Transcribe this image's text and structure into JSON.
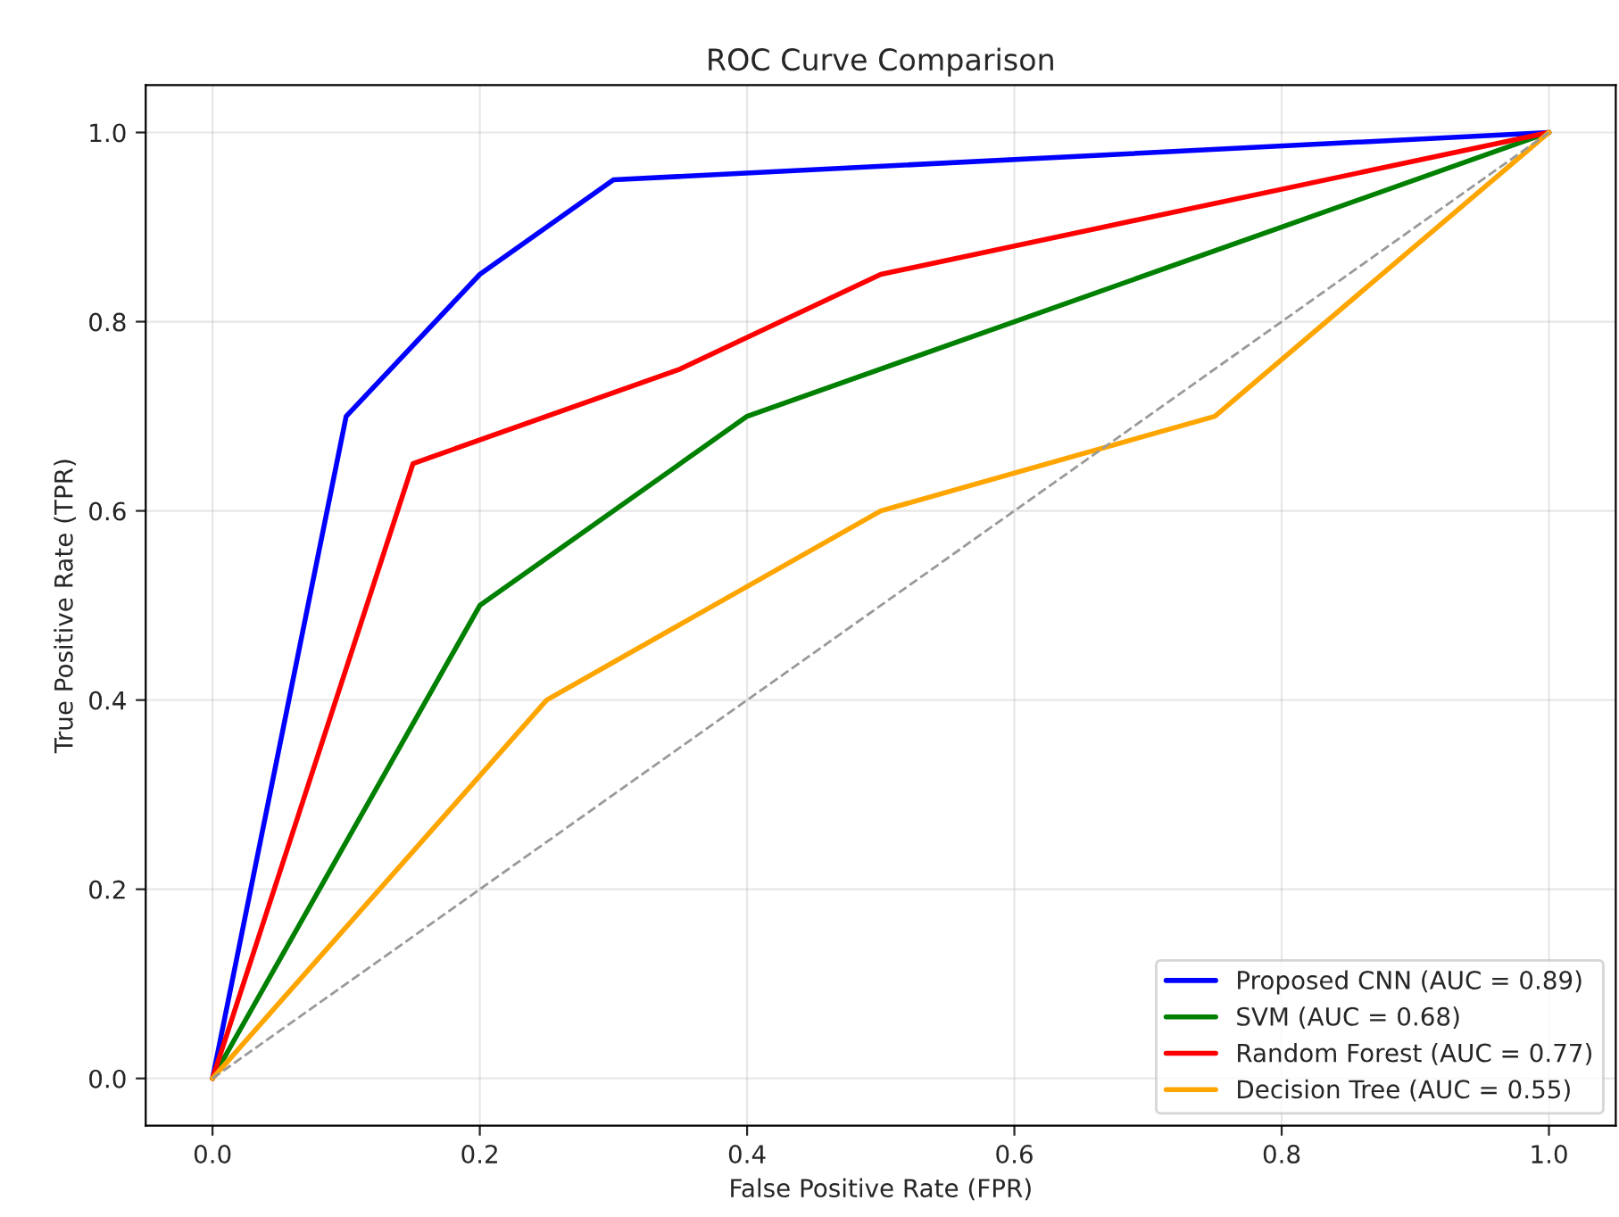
{
  "chart_data": {
    "type": "line",
    "title": "ROC Curve Comparison",
    "xlabel": "False Positive Rate (FPR)",
    "ylabel": "True Positive Rate (TPR)",
    "series": [
      {
        "name": "Proposed CNN (AUC = 0.89)",
        "color": "#0000ff",
        "x": [
          0,
          0.1,
          0.2,
          0.3,
          1.0
        ],
        "values": [
          0,
          0.7,
          0.85,
          0.95,
          1.0
        ]
      },
      {
        "name": "SVM (AUC = 0.68)",
        "color": "#008000",
        "x": [
          0,
          0.2,
          0.4,
          1.0
        ],
        "values": [
          0,
          0.5,
          0.7,
          1.0
        ]
      },
      {
        "name": "Random Forest (AUC = 0.77)",
        "color": "#ff0000",
        "x": [
          0,
          0.15,
          0.35,
          0.5,
          1.0
        ],
        "values": [
          0,
          0.65,
          0.75,
          0.85,
          1.0
        ]
      },
      {
        "name": "Decision Tree (AUC = 0.55)",
        "color": "#ffa500",
        "x": [
          0,
          0.25,
          0.5,
          0.75,
          1.0
        ],
        "values": [
          0,
          0.4,
          0.6,
          0.7,
          1.0
        ]
      },
      {
        "color": "#999999",
        "line_style": "dashed",
        "x": [
          0,
          1.0
        ],
        "values": [
          0,
          1.0
        ]
      }
    ],
    "xlim": [
      -0.05,
      1.05
    ],
    "ylim": [
      -0.05,
      1.05
    ],
    "xticks": [
      {
        "value": 0,
        "label": "0.0"
      },
      0.2,
      0.4,
      0.6,
      0.8,
      {
        "value": 1.0,
        "label": "1.0"
      }
    ],
    "yticks": [
      {
        "value": 0,
        "label": "0.0"
      },
      0.2,
      0.4,
      0.6,
      0.8,
      {
        "value": 1.0,
        "label": "1.0"
      }
    ],
    "grid": true,
    "legend": "lower right"
  }
}
